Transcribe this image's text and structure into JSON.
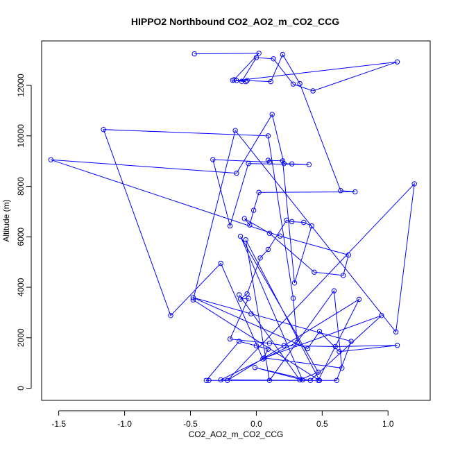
{
  "chart_data": {
    "type": "scatter",
    "title": "HIPPO2 Northbound CO2_AO2_m_CO2_CCG",
    "xlabel": "CO2_AO2_m_CO2_CCG",
    "ylabel": "Altitude (m)",
    "xlim": [
      -1.63,
      1.32
    ],
    "ylim": [
      -480,
      13760
    ],
    "x_ticks": [
      -1.5,
      -1.0,
      -0.5,
      0.0,
      0.5,
      1.0
    ],
    "x_tick_labels": [
      "-1.5",
      "-1.0",
      "-0.5",
      "0.0",
      "0.5",
      "1.0"
    ],
    "y_ticks": [
      0,
      2000,
      4000,
      6000,
      8000,
      10000,
      12000
    ],
    "y_tick_labels": [
      "0",
      "2000",
      "4000",
      "6000",
      "8000",
      "10000",
      "12000"
    ],
    "grid": false,
    "line_and_points": true,
    "color": "#0000ff",
    "series": [
      {
        "x": [
          -0.47,
          0.02,
          -0.17,
          -0.18,
          -0.08,
          -0.11,
          0.0,
          0.13,
          0.28,
          0.43,
          1.07,
          -0.15,
          -0.07,
          0.11,
          0.2,
          0.33,
          0.64,
          0.75,
          0.02,
          -0.02,
          -0.05,
          -0.09,
          0.1,
          0.44,
          0.66,
          0.7,
          0.18,
          -1.56,
          -0.15,
          0.12,
          0.21,
          0.27,
          0.4,
          -0.06,
          -0.2,
          -0.33,
          0.1,
          0.09,
          0.2,
          0.29,
          0.42,
          0.36,
          0.27,
          0.23,
          0.09,
          0.03,
          -0.07,
          -0.12,
          -0.06,
          -0.2,
          0.1,
          0.21,
          0.6,
          1.07,
          0.63,
          0.48,
          0.39,
          -0.48,
          -0.04,
          0.72,
          0.61,
          -0.36,
          -0.38,
          -0.13,
          0.0,
          0.09,
          0.05,
          -0.27,
          -0.65,
          -1.16,
          0.09,
          0.28,
          0.31,
          -0.27,
          0.47,
          0.78,
          -0.22,
          1.2,
          1.06,
          -0.16,
          -0.48,
          0.48,
          -0.08,
          0.1,
          0.59,
          0.65,
          0.06,
          0.95,
          0.41,
          -0.01,
          0.35,
          -0.12,
          0.47,
          0.33,
          -0.13
        ],
        "y": [
          13250,
          13270,
          12220,
          12200,
          12150,
          12160,
          13100,
          13050,
          12050,
          11780,
          12930,
          12190,
          12190,
          12150,
          13220,
          12070,
          7830,
          7780,
          7760,
          7050,
          6470,
          6720,
          6140,
          4600,
          4470,
          5280,
          6030,
          9050,
          8520,
          10850,
          8900,
          8890,
          8860,
          8900,
          6430,
          9060,
          8960,
          9030,
          9010,
          4170,
          6430,
          6570,
          6600,
          6660,
          5500,
          5160,
          3740,
          3530,
          3560,
          1950,
          1780,
          1690,
          1650,
          1700,
          1450,
          2250,
          1570,
          3590,
          2950,
          1860,
          310,
          310,
          310,
          1860,
          1680,
          1550,
          1160,
          4950,
          2880,
          10250,
          10000,
          3570,
          1820,
          330,
          310,
          3520,
          310,
          8100,
          2230,
          10210,
          3500,
          310,
          5880,
          310,
          3860,
          800,
          1200,
          2880,
          310,
          820,
          330,
          6020,
          640,
          330,
          3700
        ]
      }
    ]
  }
}
